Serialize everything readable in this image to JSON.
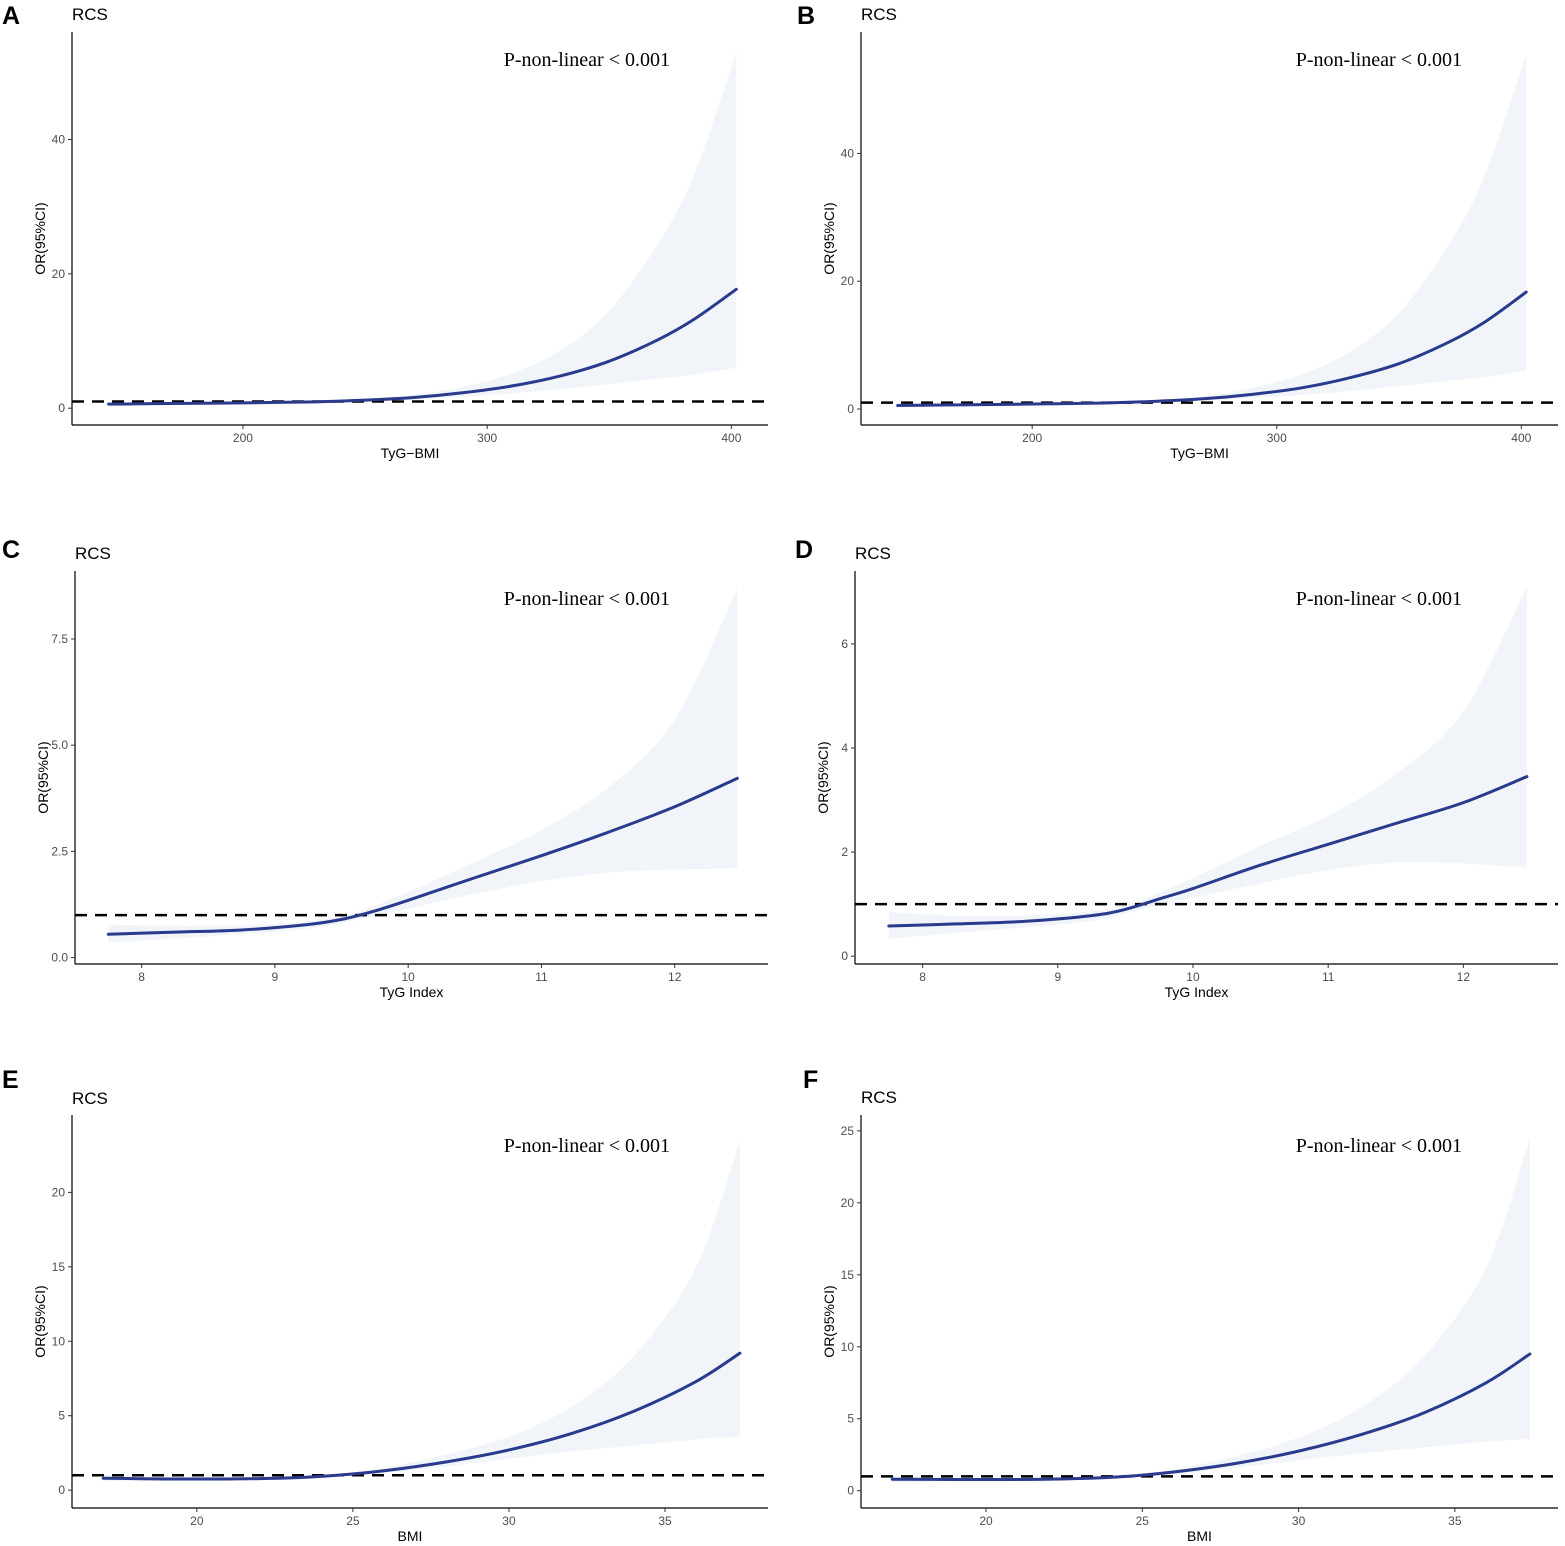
{
  "chart_data": [
    {
      "letter": "A",
      "type": "line",
      "title": "RCS",
      "xlabel": "TyG−BMI",
      "ylabel": "OR(95%CI)",
      "annotation": "P-non-linear < 0.001",
      "xlim": [
        130,
        415
      ],
      "ylim": [
        -2.5,
        56
      ],
      "xticks": [
        200,
        300,
        400
      ],
      "yticks": [
        0,
        20,
        40
      ],
      "reference_y": 1,
      "x": [
        145,
        170,
        200,
        230,
        250,
        270,
        290,
        310,
        330,
        350,
        370,
        385,
        402
      ],
      "y": [
        0.6,
        0.7,
        0.8,
        0.95,
        1.2,
        1.6,
        2.3,
        3.3,
        4.8,
        7.0,
        10.2,
        13.3,
        17.7
      ],
      "lower": [
        0.45,
        0.58,
        0.72,
        0.88,
        1.05,
        1.3,
        1.7,
        2.2,
        2.8,
        3.6,
        4.4,
        5.0,
        6.0
      ],
      "upper": [
        0.8,
        0.9,
        0.95,
        1.05,
        1.35,
        2.0,
        3.2,
        5.2,
        8.6,
        14.5,
        24.5,
        35.0,
        53.0
      ]
    },
    {
      "letter": "B",
      "type": "line",
      "title": "RCS",
      "xlabel": "TyG−BMI",
      "ylabel": "OR(95%CI)",
      "annotation": "P-non-linear < 0.001",
      "xlim": [
        130,
        415
      ],
      "ylim": [
        -2.5,
        59
      ],
      "xticks": [
        200,
        300,
        400
      ],
      "yticks": [
        0,
        20,
        40
      ],
      "reference_y": 1,
      "x": [
        145,
        170,
        200,
        230,
        250,
        270,
        290,
        310,
        330,
        350,
        370,
        385,
        402
      ],
      "y": [
        0.55,
        0.65,
        0.78,
        0.95,
        1.2,
        1.6,
        2.3,
        3.3,
        4.9,
        7.1,
        10.4,
        13.6,
        18.3
      ],
      "lower": [
        0.42,
        0.55,
        0.7,
        0.88,
        1.05,
        1.3,
        1.7,
        2.2,
        2.8,
        3.6,
        4.4,
        5.0,
        6.0
      ],
      "upper": [
        0.75,
        0.85,
        0.92,
        1.05,
        1.35,
        2.0,
        3.3,
        5.4,
        9.0,
        15.0,
        25.5,
        36.5,
        55.5
      ]
    },
    {
      "letter": "C",
      "type": "line",
      "title": "RCS",
      "xlabel": "TyG Index",
      "ylabel": "OR(95%CI)",
      "annotation": "P-non-linear < 0.001",
      "xlim": [
        7.5,
        12.7
      ],
      "ylim": [
        -0.15,
        9.1
      ],
      "xticks": [
        8,
        9,
        10,
        11,
        12
      ],
      "yticks": [
        0.0,
        2.5,
        5.0,
        7.5
      ],
      "ytick_labels": [
        "0.0",
        "2.5",
        "5.0",
        "7.5"
      ],
      "reference_y": 1,
      "x": [
        7.75,
        8.25,
        8.75,
        9.25,
        9.5,
        9.75,
        10.0,
        10.5,
        11.0,
        11.5,
        12.0,
        12.47
      ],
      "y": [
        0.55,
        0.6,
        0.65,
        0.78,
        0.9,
        1.1,
        1.35,
        1.88,
        2.4,
        2.95,
        3.55,
        4.22
      ],
      "lower": [
        0.35,
        0.45,
        0.55,
        0.68,
        0.82,
        0.98,
        1.15,
        1.5,
        1.8,
        2.0,
        2.07,
        2.1
      ],
      "upper": [
        0.78,
        0.75,
        0.76,
        0.86,
        0.98,
        1.22,
        1.55,
        2.25,
        3.0,
        4.0,
        5.6,
        8.7
      ]
    },
    {
      "letter": "D",
      "type": "line",
      "title": "RCS",
      "xlabel": "TyG Index",
      "ylabel": "OR(95%CI)",
      "annotation": "P-non-linear < 0.001",
      "xlim": [
        7.5,
        12.7
      ],
      "ylim": [
        -0.15,
        7.4
      ],
      "xticks": [
        8,
        9,
        10,
        11,
        12
      ],
      "yticks": [
        0,
        2,
        4,
        6
      ],
      "reference_y": 1,
      "x": [
        7.75,
        8.25,
        8.75,
        9.25,
        9.5,
        9.75,
        10.0,
        10.5,
        11.0,
        11.5,
        12.0,
        12.47
      ],
      "y": [
        0.58,
        0.62,
        0.67,
        0.78,
        0.9,
        1.1,
        1.3,
        1.75,
        2.15,
        2.55,
        2.95,
        3.45
      ],
      "lower": [
        0.33,
        0.45,
        0.55,
        0.68,
        0.82,
        0.98,
        1.12,
        1.4,
        1.65,
        1.8,
        1.78,
        1.7
      ],
      "upper": [
        0.85,
        0.78,
        0.78,
        0.86,
        0.98,
        1.22,
        1.5,
        2.12,
        2.7,
        3.5,
        4.7,
        7.1
      ]
    },
    {
      "letter": "E",
      "type": "line",
      "title": "RCS",
      "xlabel": "BMI",
      "ylabel": "OR(95%CI)",
      "annotation": "P-non-linear < 0.001",
      "xlim": [
        16.0,
        38.3
      ],
      "ylim": [
        -1.2,
        25.2
      ],
      "xticks": [
        20,
        25,
        30,
        35
      ],
      "yticks": [
        0,
        5,
        10,
        15,
        20
      ],
      "reference_y": 1,
      "x": [
        17.0,
        19.0,
        21.0,
        23.0,
        24.5,
        26.0,
        28.0,
        30.0,
        32.0,
        34.0,
        36.0,
        37.4
      ],
      "y": [
        0.8,
        0.75,
        0.75,
        0.82,
        1.0,
        1.3,
        1.9,
        2.7,
        3.8,
        5.3,
        7.3,
        9.2
      ],
      "lower": [
        0.6,
        0.62,
        0.65,
        0.75,
        0.9,
        1.15,
        1.6,
        2.1,
        2.6,
        3.0,
        3.4,
        3.6
      ],
      "upper": [
        1.0,
        0.9,
        0.88,
        0.9,
        1.1,
        1.5,
        2.4,
        3.6,
        5.6,
        9.0,
        15.0,
        23.5
      ]
    },
    {
      "letter": "F",
      "type": "line",
      "title": "RCS",
      "xlabel": "BMI",
      "ylabel": "OR(95%CI)",
      "annotation": "P-non-linear < 0.001",
      "xlim": [
        16.0,
        38.3
      ],
      "ylim": [
        -1.2,
        26.1
      ],
      "xticks": [
        20,
        25,
        30,
        35
      ],
      "yticks": [
        0,
        5,
        10,
        15,
        20,
        25
      ],
      "reference_y": 1,
      "x": [
        17.0,
        19.0,
        21.0,
        23.0,
        24.5,
        26.0,
        28.0,
        30.0,
        32.0,
        34.0,
        36.0,
        37.4
      ],
      "y": [
        0.8,
        0.78,
        0.78,
        0.85,
        1.0,
        1.3,
        1.9,
        2.75,
        3.9,
        5.4,
        7.5,
        9.5
      ],
      "lower": [
        0.6,
        0.63,
        0.66,
        0.76,
        0.9,
        1.15,
        1.6,
        2.1,
        2.6,
        3.0,
        3.4,
        3.6
      ],
      "upper": [
        1.0,
        0.92,
        0.9,
        0.94,
        1.1,
        1.5,
        2.4,
        3.7,
        5.8,
        9.3,
        15.5,
        24.5
      ]
    }
  ]
}
